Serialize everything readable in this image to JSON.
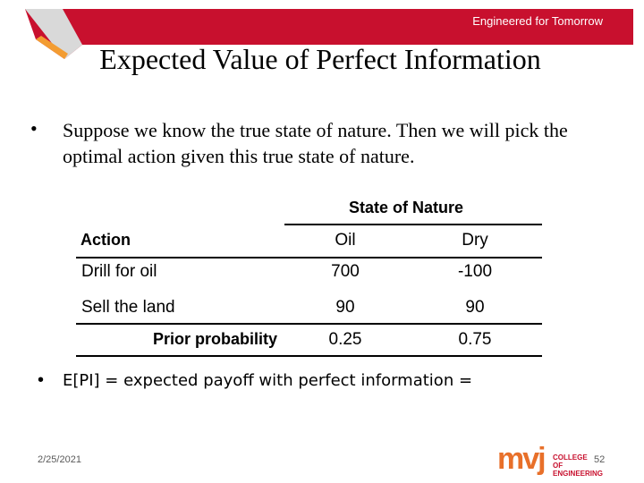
{
  "header": {
    "tagline": "Engineered for Tomorrow",
    "title": "Expected Value of Perfect Information"
  },
  "bullets": [
    "Suppose we know the true state of nature.  Then we will pick the optimal action given this true state of nature.",
    "E[PI] = expected payoff with perfect information ="
  ],
  "table": {
    "group_header": "State of Nature",
    "columns": [
      "Action",
      "Oil",
      "Dry"
    ],
    "rows": [
      [
        "Drill for oil",
        "700",
        "-100"
      ],
      [
        "Sell the land",
        "90",
        "90"
      ],
      [
        "Prior probability",
        "0.25",
        "0.75"
      ]
    ]
  },
  "footer": {
    "date": "2/25/2021",
    "logo": "mvj",
    "logo_text": "COLLEGE OF ENGINEERING",
    "page": "52"
  }
}
